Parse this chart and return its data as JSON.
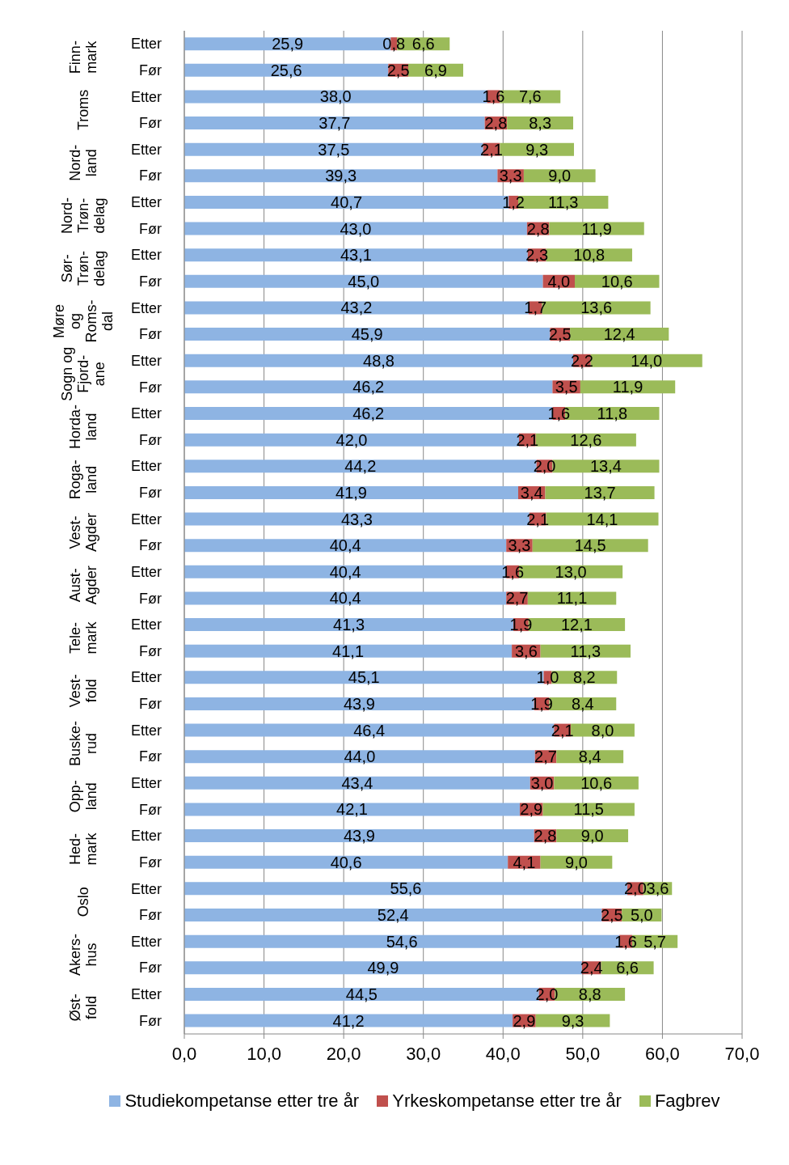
{
  "chart_data": {
    "type": "bar",
    "orientation": "horizontal",
    "stacked": true,
    "grid": "x",
    "legend": "bottom",
    "categories": [
      "Etter",
      "Før",
      "Etter",
      "Før",
      "Etter",
      "Før",
      "Etter",
      "Før",
      "Etter",
      "Før",
      "Etter",
      "Før",
      "Etter",
      "Før",
      "Etter",
      "Før",
      "Etter",
      "Før",
      "Etter",
      "Før",
      "Etter",
      "Før",
      "Etter",
      "Før",
      "Etter",
      "Før",
      "Etter",
      "Før",
      "Etter",
      "Før",
      "Etter",
      "Før",
      "Etter",
      "Før",
      "Etter",
      "Før",
      "Etter",
      "Før"
    ],
    "annotations": [
      "Finn-\nmark",
      "Troms",
      "Nord-\nland",
      "Nord-\nTrøn-\ndelag",
      "Sør-\nTrøn-\ndelag",
      "Møre\nog\nRoms-\ndal",
      "Sogn og\nFjord-\nane",
      "Horda-\nland",
      "Roga-\nland",
      "Vest-\nAgder",
      "Aust-\nAgder",
      "Tele-\nmark",
      "Vest-\nfold",
      "Buske-\nrud",
      "Opp-\nland",
      "Hed-\nmark",
      "Oslo",
      "Akers-\nhus",
      "Øst-\nfold"
    ],
    "xlim": [
      0,
      70
    ],
    "xticks": [
      {
        "value": 0,
        "label": "0,0"
      },
      {
        "value": 10,
        "label": "10,0"
      },
      {
        "value": 20,
        "label": "20,0"
      },
      {
        "value": 30,
        "label": "30,0"
      },
      {
        "value": 40,
        "label": "40,0"
      },
      {
        "value": 50,
        "label": "50,0"
      },
      {
        "value": 60,
        "label": "60,0"
      },
      {
        "value": 70,
        "label": "70,0"
      }
    ],
    "series": [
      {
        "name": "Studiekompetanse etter tre år",
        "color": "#8eb4e3",
        "values": [
          25.9,
          25.6,
          38.0,
          37.7,
          37.5,
          39.3,
          40.7,
          43.0,
          43.1,
          45.0,
          43.2,
          45.9,
          48.8,
          46.2,
          46.2,
          42.0,
          44.2,
          41.9,
          43.3,
          40.4,
          40.4,
          40.4,
          41.3,
          41.1,
          45.1,
          43.9,
          46.4,
          44.0,
          43.4,
          42.1,
          43.9,
          40.6,
          55.6,
          52.4,
          54.6,
          49.9,
          44.5,
          41.2
        ],
        "value_labels": [
          "25,9",
          "25,6",
          "38,0",
          "37,7",
          "37,5",
          "39,3",
          "40,7",
          "43,0",
          "43,1",
          "45,0",
          "43,2",
          "45,9",
          "48,8",
          "46,2",
          "46,2",
          "42,0",
          "44,2",
          "41,9",
          "43,3",
          "40,4",
          "40,4",
          "40,4",
          "41,3",
          "41,1",
          "45,1",
          "43,9",
          "46,4",
          "44,0",
          "43,4",
          "42,1",
          "43,9",
          "40,6",
          "55,6",
          "52,4",
          "54,6",
          "49,9",
          "44,5",
          "41,2"
        ]
      },
      {
        "name": "Yrkeskompetanse etter tre år",
        "color": "#c0504d",
        "values": [
          0.8,
          2.5,
          1.6,
          2.8,
          2.1,
          3.3,
          1.2,
          2.8,
          2.3,
          4.0,
          1.7,
          2.5,
          2.2,
          3.5,
          1.6,
          2.1,
          2.0,
          3.4,
          2.1,
          3.3,
          1.6,
          2.7,
          1.9,
          3.6,
          1.0,
          1.9,
          2.1,
          2.7,
          3.0,
          2.9,
          2.8,
          4.1,
          2.0,
          2.5,
          1.6,
          2.4,
          2.0,
          2.9
        ],
        "value_labels": [
          "0,8",
          "2,5",
          "1,6",
          "2,8",
          "2,1",
          "3,3",
          "1,2",
          "2,8",
          "2,3",
          "4,0",
          "1,7",
          "2,5",
          "2,2",
          "3,5",
          "1,6",
          "2,1",
          "2,0",
          "3,4",
          "2,1",
          "3,3",
          "1,6",
          "2,7",
          "1,9",
          "3,6",
          "1,0",
          "1,9",
          "2,1",
          "2,7",
          "3,0",
          "2,9",
          "2,8",
          "4,1",
          "2,0",
          "2,5",
          "1,6",
          "2,4",
          "2,0",
          "2,9"
        ]
      },
      {
        "name": "Fagbrev",
        "color": "#9bbb59",
        "values": [
          6.6,
          6.9,
          7.6,
          8.3,
          9.3,
          9.0,
          11.3,
          11.9,
          10.8,
          10.6,
          13.6,
          12.4,
          14.0,
          11.9,
          11.8,
          12.6,
          13.4,
          13.7,
          14.1,
          14.5,
          13.0,
          11.1,
          12.1,
          11.3,
          8.2,
          8.4,
          8.0,
          8.4,
          10.6,
          11.5,
          9.0,
          9.0,
          3.6,
          5.0,
          5.7,
          6.6,
          8.8,
          9.3
        ],
        "value_labels": [
          "6,6",
          "6,9",
          "7,6",
          "8,3",
          "9,3",
          "9,0",
          "11,3",
          "11,9",
          "10,8",
          "10,6",
          "13,6",
          "12,4",
          "14,0",
          "11,9",
          "11,8",
          "12,6",
          "13,4",
          "13,7",
          "14,1",
          "14,5",
          "13,0",
          "11,1",
          "12,1",
          "11,3",
          "8,2",
          "8,4",
          "8,0",
          "8,4",
          "10,6",
          "11,5",
          "9,0",
          "9,0",
          "3,6",
          "5,0",
          "5,7",
          "6,6",
          "8,8",
          "9,3"
        ]
      }
    ]
  }
}
